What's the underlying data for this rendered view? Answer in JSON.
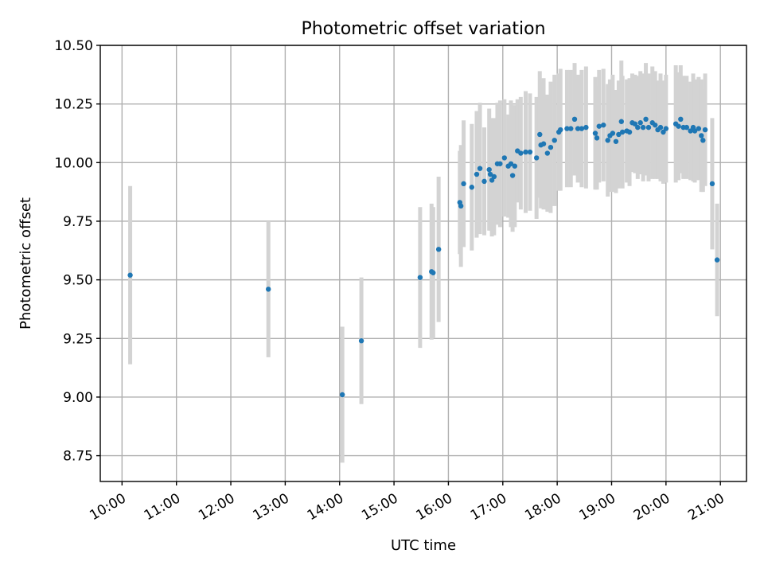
{
  "chart_data": {
    "type": "scatter",
    "title": "Photometric offset variation",
    "xlabel": "UTC time",
    "ylabel": "Photometric offset",
    "xlim": [
      9.6,
      21.48
    ],
    "ylim": [
      8.64,
      10.5
    ],
    "grid": true,
    "x_ticks": [
      10,
      11,
      12,
      13,
      14,
      15,
      16,
      17,
      18,
      19,
      20,
      21
    ],
    "x_tick_labels": [
      "10:00",
      "11:00",
      "12:00",
      "13:00",
      "14:00",
      "15:00",
      "16:00",
      "17:00",
      "18:00",
      "19:00",
      "20:00",
      "21:00"
    ],
    "y_ticks": [
      8.75,
      9.0,
      9.25,
      9.5,
      9.75,
      10.0,
      10.25,
      10.5
    ],
    "y_tick_labels": [
      "8.75",
      "9.00",
      "9.25",
      "9.50",
      "9.75",
      "10.00",
      "10.25",
      "10.50"
    ],
    "colors": {
      "point": "#1f77b4",
      "errorbar": "#d3d3d3",
      "grid": "#b0b0b0",
      "axis": "#000000"
    },
    "series": [
      {
        "name": "Photometric offset",
        "x_hours": [
          10.15,
          12.69,
          14.05,
          14.4,
          15.48,
          15.69,
          15.72,
          15.82,
          16.21,
          16.23,
          16.28,
          16.43,
          16.52,
          16.58,
          16.66,
          16.75,
          16.77,
          16.8,
          16.84,
          16.9,
          16.95,
          17.03,
          17.1,
          17.15,
          17.18,
          17.22,
          17.27,
          17.33,
          17.42,
          17.5,
          17.62,
          17.68,
          17.7,
          17.75,
          17.82,
          17.88,
          17.95,
          18.03,
          18.06,
          18.18,
          18.25,
          18.32,
          18.38,
          18.45,
          18.53,
          18.7,
          18.73,
          18.77,
          18.85,
          18.93,
          18.97,
          19.02,
          19.08,
          19.13,
          19.18,
          19.2,
          19.28,
          19.33,
          19.38,
          19.43,
          19.48,
          19.53,
          19.58,
          19.63,
          19.68,
          19.75,
          19.8,
          19.85,
          19.9,
          19.95,
          20.0,
          20.18,
          20.23,
          20.27,
          20.32,
          20.38,
          20.45,
          20.5,
          20.53,
          20.6,
          20.65,
          20.68,
          20.72,
          20.85,
          20.94
        ],
        "y": [
          9.52,
          9.46,
          9.01,
          9.24,
          9.51,
          9.535,
          9.53,
          9.63,
          9.83,
          9.815,
          9.91,
          9.895,
          9.95,
          9.975,
          9.92,
          9.97,
          9.95,
          9.925,
          9.94,
          9.995,
          9.995,
          10.02,
          9.985,
          9.995,
          9.945,
          9.985,
          10.05,
          10.04,
          10.045,
          10.045,
          10.02,
          10.12,
          10.075,
          10.08,
          10.04,
          10.065,
          10.095,
          10.13,
          10.14,
          10.145,
          10.145,
          10.185,
          10.145,
          10.145,
          10.15,
          10.125,
          10.105,
          10.155,
          10.16,
          10.095,
          10.115,
          10.125,
          10.09,
          10.12,
          10.175,
          10.13,
          10.135,
          10.13,
          10.17,
          10.165,
          10.15,
          10.17,
          10.15,
          10.185,
          10.15,
          10.17,
          10.16,
          10.14,
          10.15,
          10.13,
          10.145,
          10.165,
          10.155,
          10.185,
          10.15,
          10.15,
          10.135,
          10.15,
          10.135,
          10.145,
          10.115,
          10.095,
          10.14,
          9.91,
          9.585
        ],
        "error": [
          0.38,
          0.29,
          0.29,
          0.27,
          0.3,
          0.29,
          0.28,
          0.31,
          0.22,
          0.26,
          0.27,
          0.27,
          0.27,
          0.28,
          0.23,
          0.26,
          0.24,
          0.24,
          0.25,
          0.26,
          0.27,
          0.25,
          0.22,
          0.27,
          0.24,
          0.26,
          0.22,
          0.24,
          0.26,
          0.25,
          0.26,
          0.27,
          0.27,
          0.28,
          0.25,
          0.28,
          0.28,
          0.25,
          0.26,
          0.25,
          0.25,
          0.24,
          0.23,
          0.25,
          0.26,
          0.24,
          0.22,
          0.24,
          0.24,
          0.24,
          0.24,
          0.25,
          0.22,
          0.23,
          0.26,
          0.24,
          0.22,
          0.23,
          0.21,
          0.21,
          0.22,
          0.22,
          0.23,
          0.24,
          0.23,
          0.24,
          0.23,
          0.21,
          0.23,
          0.22,
          0.23,
          0.25,
          0.23,
          0.23,
          0.22,
          0.22,
          0.21,
          0.23,
          0.22,
          0.22,
          0.24,
          0.22,
          0.24,
          0.28,
          0.24
        ]
      }
    ]
  }
}
